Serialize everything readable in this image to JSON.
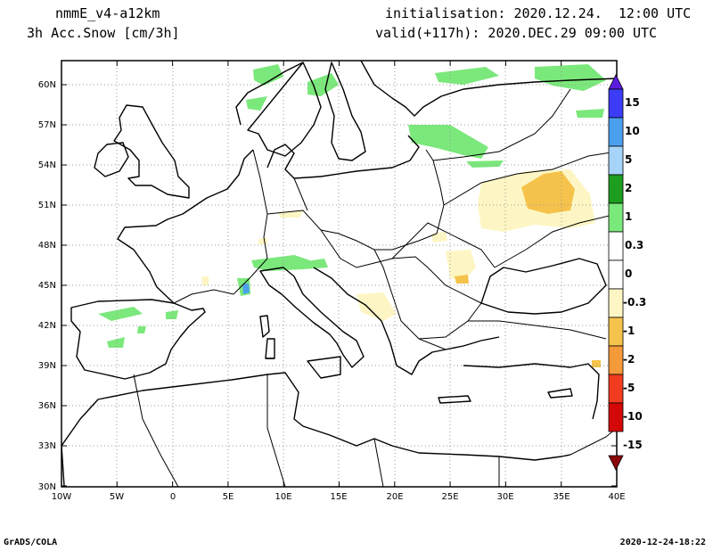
{
  "header": {
    "model": "nmmE_v4-a12km",
    "variable": "3h Acc.Snow [cm/3h]",
    "init": "initialisation: 2020.12.24.  12:00 UTC",
    "valid": "valid(+117h): 2020.DEC.29 09:00 UTC"
  },
  "footer": {
    "left": "GrADS/COLA",
    "right": "2020-12-24-18:22"
  },
  "map": {
    "lon_range": [
      -10,
      40
    ],
    "lat_range": [
      30,
      62
    ],
    "lat_labels": [
      "60N",
      "57N",
      "54N",
      "51N",
      "48N",
      "45N",
      "42N",
      "39N",
      "36N",
      "33N",
      "30N"
    ],
    "lon_labels": [
      "10W",
      "5W",
      "0",
      "5E",
      "10E",
      "15E",
      "20E",
      "25E",
      "30E",
      "35E",
      "40E"
    ],
    "grid": "dotted"
  },
  "colorbar": {
    "labels": [
      "15",
      "10",
      "5",
      "2",
      "1",
      "0.3",
      "0",
      "-0.3",
      "-1",
      "-2",
      "-5",
      "-10",
      "-15"
    ],
    "colors": [
      "#5b1ddd",
      "#3c3cf6",
      "#4ba0ee",
      "#a6d3f8",
      "#1e9e1e",
      "#7be87b",
      "#ffffff",
      "#ffffff",
      "#fdf6c4",
      "#f5c34b",
      "#f59a3b",
      "#f23c1f",
      "#d40808",
      "#8a0a0a"
    ]
  }
}
